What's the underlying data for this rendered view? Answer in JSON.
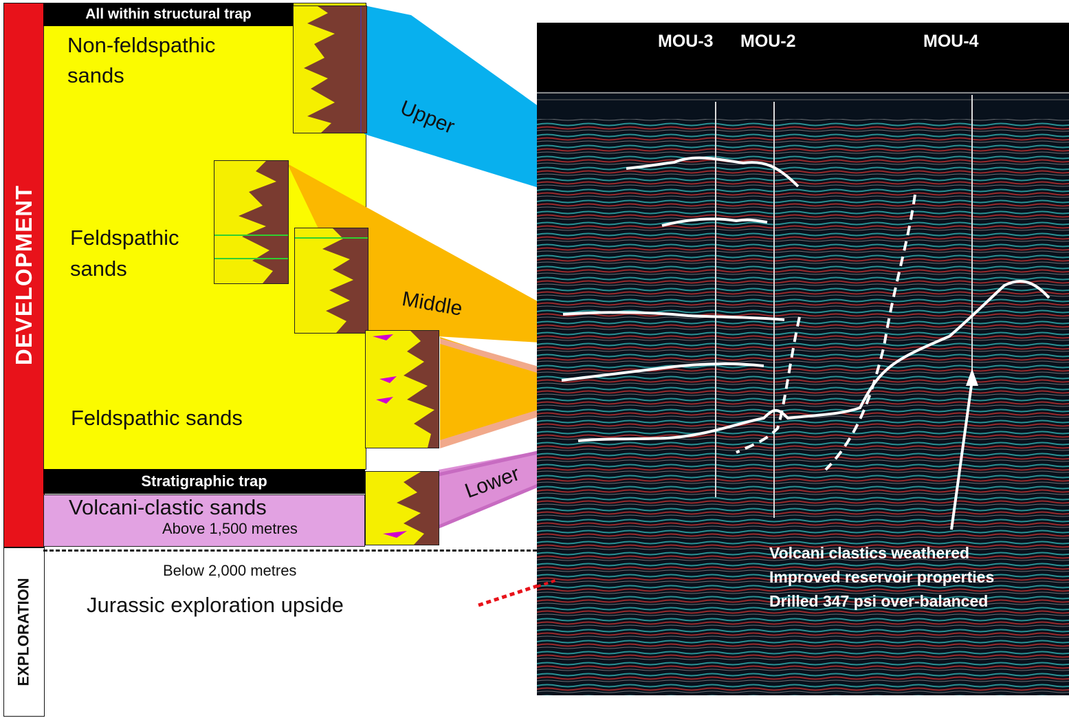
{
  "side_labels": {
    "development": "DEVELOPMENT",
    "exploration": "EXPLORATION"
  },
  "column": {
    "top_banner": "All within structural trap",
    "unit_nonfeldspathic": "Non-feldspathic sands",
    "unit_feldspathic_upper": "Feldspathic sands",
    "unit_feldspathic_lower": "Feldspathic sands",
    "strat_banner": "Stratigraphic trap",
    "unit_volcaniclastic": "Volcani-clastic sands",
    "depth_above": "Above 1,500 metres",
    "depth_below": "Below 2,000 metres",
    "jurassic": "Jurassic exploration upside"
  },
  "zones": {
    "upper": "Upper",
    "middle": "Middle",
    "lower": "Lower"
  },
  "seismic": {
    "wells": [
      "MOU-3",
      "MOU-2",
      "MOU-4"
    ],
    "notes": [
      "Volcani clastics weathered",
      "Improved reservoir properties",
      "Drilled 347 psi over-balanced"
    ]
  },
  "colors": {
    "development_bar": "#e8121a",
    "sand_yellow": "#fbfb00",
    "volcaniclastic_pink": "#e2a2e2",
    "upper_zone": "#08b0ee",
    "middle_zone": "#fbb800",
    "lower_zone": "#dd8fd6",
    "log_shale": "#7a3b30"
  }
}
